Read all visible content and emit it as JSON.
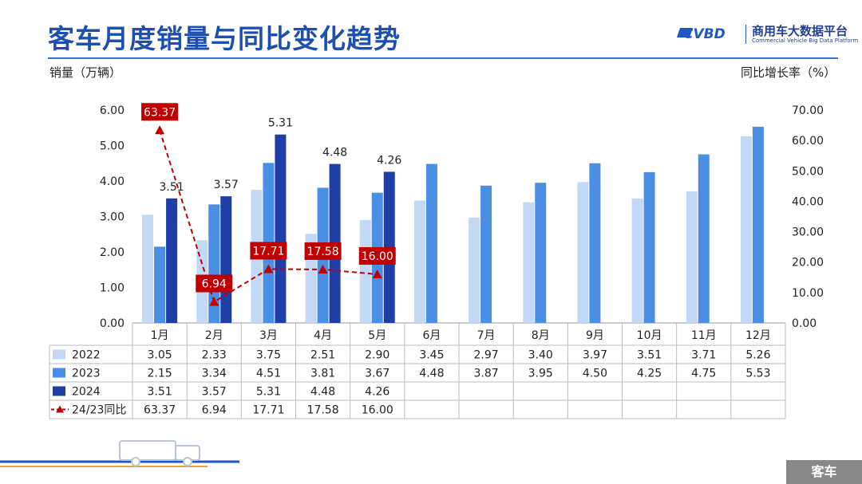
{
  "header": {
    "title": "客车月度销量与同比变化趋势",
    "logo_mark": "CVBD",
    "logo_cn": "商用车大数据平台",
    "logo_en": "Commercial Vehicle Big Data Platform",
    "brand_color": "#1d4fb0"
  },
  "axes": {
    "left_title": "销量（万辆）",
    "right_title": "同比增长率（%）"
  },
  "footer_tag": "客车",
  "chart_data": {
    "type": "bar",
    "categories": [
      "1月",
      "2月",
      "3月",
      "4月",
      "5月",
      "6月",
      "7月",
      "8月",
      "9月",
      "10月",
      "11月",
      "12月"
    ],
    "series": [
      {
        "name": "2022",
        "color": "#c3d8f5",
        "values": [
          3.05,
          2.33,
          3.75,
          2.51,
          2.9,
          3.45,
          2.97,
          3.4,
          3.97,
          3.51,
          3.71,
          5.26
        ]
      },
      {
        "name": "2023",
        "color": "#4a8fe4",
        "values": [
          2.15,
          3.34,
          4.51,
          3.81,
          3.67,
          4.48,
          3.87,
          3.95,
          4.5,
          4.25,
          4.75,
          5.53
        ]
      },
      {
        "name": "2024",
        "color": "#1f3ea8",
        "values": [
          3.51,
          3.57,
          5.31,
          4.48,
          4.26,
          null,
          null,
          null,
          null,
          null,
          null,
          null
        ]
      }
    ],
    "line_series": {
      "name": "24/23同比",
      "color": "#c00000",
      "values": [
        63.37,
        6.94,
        17.71,
        17.58,
        16.0,
        null,
        null,
        null,
        null,
        null,
        null,
        null
      ]
    },
    "y_left": {
      "min": 0,
      "max": 6,
      "ticks": [
        "0.00",
        "1.00",
        "2.00",
        "3.00",
        "4.00",
        "5.00",
        "6.00"
      ]
    },
    "y_right": {
      "min": 0,
      "max": 70,
      "ticks": [
        "0.00",
        "10.00",
        "20.00",
        "30.00",
        "40.00",
        "50.00",
        "60.00",
        "70.00"
      ]
    },
    "bar_value_labels": {
      "series": "2024",
      "labels": [
        "3.51",
        "3.57",
        "5.31",
        "4.48",
        "4.26"
      ]
    },
    "line_value_labels": [
      "63.37",
      "6.94",
      "17.71",
      "17.58",
      "16.00"
    ],
    "table": {
      "rows": [
        {
          "name": "2022",
          "cells": [
            "3.05",
            "2.33",
            "3.75",
            "2.51",
            "2.90",
            "3.45",
            "2.97",
            "3.40",
            "3.97",
            "3.51",
            "3.71",
            "5.26"
          ]
        },
        {
          "name": "2023",
          "cells": [
            "2.15",
            "3.34",
            "4.51",
            "3.81",
            "3.67",
            "4.48",
            "3.87",
            "3.95",
            "4.50",
            "4.25",
            "4.75",
            "5.53"
          ]
        },
        {
          "name": "2024",
          "cells": [
            "3.51",
            "3.57",
            "5.31",
            "4.48",
            "4.26",
            "",
            "",
            "",
            "",
            "",
            "",
            ""
          ]
        },
        {
          "name": "24/23同比",
          "cells": [
            "63.37",
            "6.94",
            "17.71",
            "17.58",
            "16.00",
            "",
            "",
            "",
            "",
            "",
            "",
            ""
          ]
        }
      ]
    }
  }
}
